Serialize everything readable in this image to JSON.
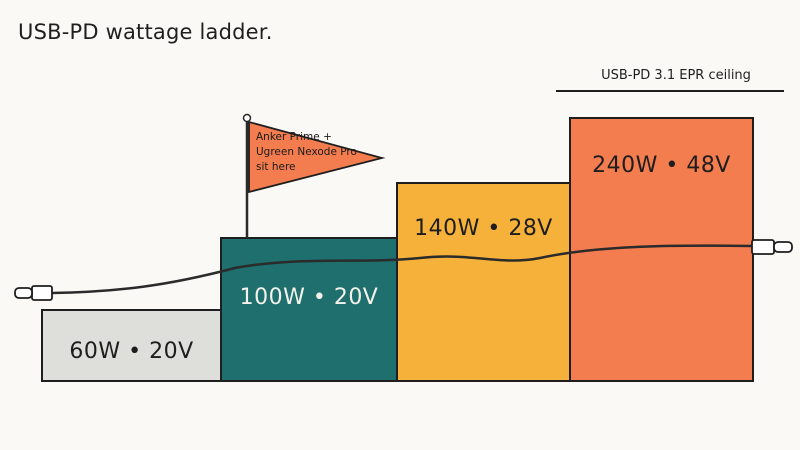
{
  "title": "USB-PD wattage ladder.",
  "ceiling_label": "USB-PD 3.1 EPR ceiling",
  "flag": {
    "lines": [
      "Anker Prime +",
      "Ugreen Nexode Pro",
      "sit here"
    ]
  },
  "steps": [
    {
      "label": "60W • 20V",
      "watts": 60,
      "volts": 20,
      "color": "#dededb",
      "text_color": "#1d1d1d"
    },
    {
      "label": "100W • 20V",
      "watts": 100,
      "volts": 20,
      "color": "#1f6f6f",
      "text_color": "#f4f1ea"
    },
    {
      "label": "140W • 28V",
      "watts": 140,
      "volts": 28,
      "color": "#f6b13a",
      "text_color": "#1d1d1d"
    },
    {
      "label": "240W • 48V",
      "watts": 240,
      "volts": 48,
      "color": "#f47d4f",
      "text_color": "#1d1d1d"
    }
  ],
  "colors": {
    "flag": "#f47d4f",
    "cable": "#2b2b2b",
    "ink": "#1e1e1e"
  }
}
